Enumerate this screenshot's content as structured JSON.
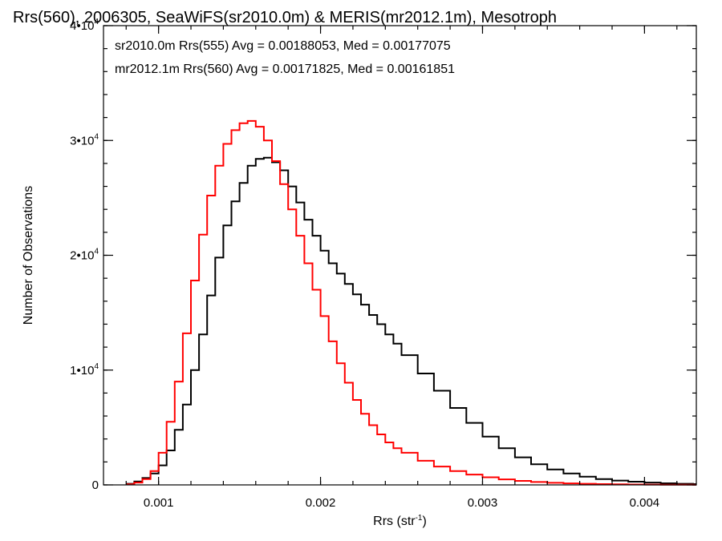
{
  "chart_data": {
    "type": "line",
    "step": true,
    "title": "Rrs(560), 2006305, SeaWiFS(sr2010.0m) & MERIS(mr2012.1m), Mesotroph",
    "xlabel": "Rrs (str",
    "xlabel_exponent": "-1",
    "xlabel_close": ")",
    "ylabel": "Number of Observations",
    "xlim": [
      0.00066,
      0.00432
    ],
    "ylim": [
      0,
      40000
    ],
    "grid": false,
    "x_ticks": [
      {
        "value": 0.001,
        "label": "0.001"
      },
      {
        "value": 0.002,
        "label": "0.002"
      },
      {
        "value": 0.003,
        "label": "0.003"
      },
      {
        "value": 0.004,
        "label": "0.004"
      }
    ],
    "x_minor_step": 0.0002,
    "y_ticks": [
      {
        "value": 0,
        "mantissa": "0",
        "exponent": ""
      },
      {
        "value": 10000,
        "mantissa": "1•10",
        "exponent": "4"
      },
      {
        "value": 20000,
        "mantissa": "2•10",
        "exponent": "4"
      },
      {
        "value": 30000,
        "mantissa": "3•10",
        "exponent": "4"
      },
      {
        "value": 40000,
        "mantissa": "4•10",
        "exponent": "4"
      }
    ],
    "y_minor_step": 2000,
    "annotations": [
      {
        "text": "sr2010.0m Rrs(555) Avg = 0.00188053, Med = 0.00177075",
        "color": "#000000"
      },
      {
        "text": "mr2012.1m Rrs(560) Avg = 0.00171825, Med = 0.00161851",
        "color": "#ff0000"
      }
    ],
    "series": [
      {
        "color": "#000000",
        "x": [
          0.0008,
          0.00085,
          0.0009,
          0.00095,
          0.001,
          0.00105,
          0.0011,
          0.00115,
          0.0012,
          0.00125,
          0.0013,
          0.00135,
          0.0014,
          0.00145,
          0.0015,
          0.00155,
          0.0016,
          0.00165,
          0.0017,
          0.00175,
          0.0018,
          0.00185,
          0.0019,
          0.00195,
          0.002,
          0.00205,
          0.0021,
          0.00215,
          0.0022,
          0.00225,
          0.0023,
          0.00235,
          0.0024,
          0.00245,
          0.0025,
          0.0026,
          0.0027,
          0.0028,
          0.0029,
          0.003,
          0.0031,
          0.0032,
          0.0033,
          0.0034,
          0.0035,
          0.0036,
          0.0037,
          0.0038,
          0.0039,
          0.004,
          0.0041,
          0.0042,
          0.0043
        ],
        "y": [
          100,
          300,
          600,
          1000,
          1700,
          3000,
          4800,
          7000,
          10000,
          13100,
          16500,
          19800,
          22600,
          24700,
          26300,
          27800,
          28400,
          28500,
          28100,
          27400,
          26000,
          24600,
          23100,
          21700,
          20400,
          19300,
          18400,
          17500,
          16600,
          15700,
          14800,
          14000,
          13100,
          12300,
          11300,
          9700,
          8200,
          6700,
          5400,
          4200,
          3200,
          2400,
          1800,
          1350,
          1000,
          720,
          500,
          380,
          280,
          200,
          140,
          100,
          70
        ]
      },
      {
        "color": "#ff0000",
        "x": [
          0.0008,
          0.00085,
          0.0009,
          0.00095,
          0.001,
          0.00105,
          0.0011,
          0.00115,
          0.0012,
          0.00125,
          0.0013,
          0.00135,
          0.0014,
          0.00145,
          0.0015,
          0.00155,
          0.0016,
          0.00165,
          0.0017,
          0.00175,
          0.0018,
          0.00185,
          0.0019,
          0.00195,
          0.002,
          0.00205,
          0.0021,
          0.00215,
          0.0022,
          0.00225,
          0.0023,
          0.00235,
          0.0024,
          0.00245,
          0.0025,
          0.0026,
          0.0027,
          0.0028,
          0.0029,
          0.003,
          0.0031,
          0.0032,
          0.0033,
          0.0034,
          0.0035,
          0.0036,
          0.0037,
          0.0038,
          0.0039,
          0.004,
          0.0041,
          0.0042,
          0.0043
        ],
        "y": [
          50,
          200,
          500,
          1200,
          2800,
          5500,
          9000,
          13200,
          17800,
          21800,
          25200,
          27800,
          29700,
          30900,
          31500,
          31700,
          31200,
          30000,
          28200,
          26200,
          24000,
          21700,
          19300,
          17000,
          14700,
          12500,
          10600,
          8900,
          7400,
          6200,
          5200,
          4400,
          3700,
          3200,
          2800,
          2100,
          1600,
          1200,
          900,
          660,
          480,
          350,
          250,
          180,
          130,
          95,
          70,
          50,
          35,
          25,
          18,
          12,
          8
        ]
      }
    ]
  }
}
